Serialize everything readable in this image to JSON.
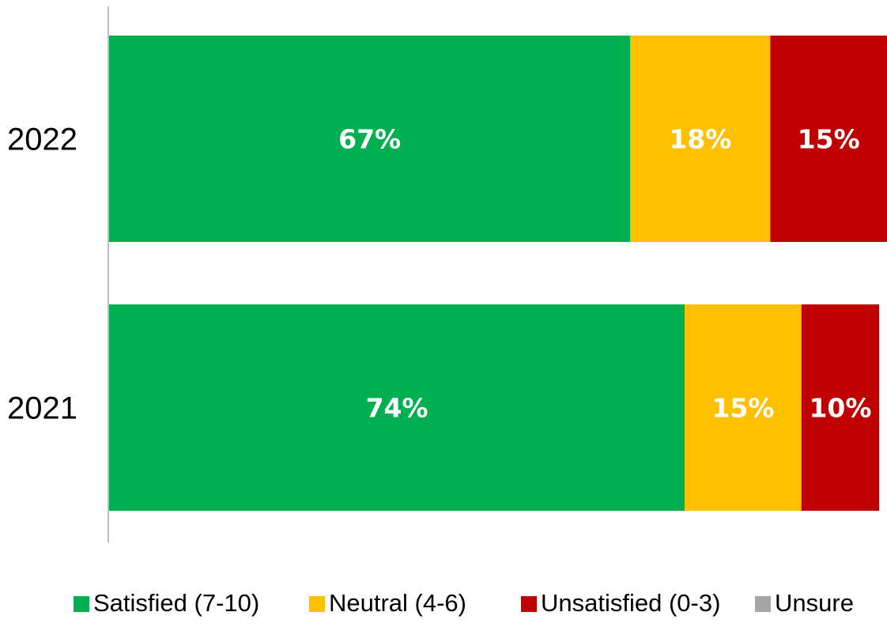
{
  "chart_data": {
    "type": "bar",
    "orientation": "horizontal",
    "stacked": true,
    "categories": [
      "2022",
      "2021"
    ],
    "series": [
      {
        "name": "Satisfied (7-10)",
        "color": "#00B050",
        "values": [
          67,
          74
        ],
        "labels": [
          "67%",
          "74%"
        ]
      },
      {
        "name": "Neutral (4-6)",
        "color": "#FFC000",
        "values": [
          18,
          15
        ],
        "labels": [
          "18%",
          "15%"
        ]
      },
      {
        "name": "Unsatisfied (0-3)",
        "color": "#C00000",
        "values": [
          15,
          10
        ],
        "labels": [
          "15%",
          "10%"
        ]
      },
      {
        "name": "Unsure",
        "color": "#A6A6A6",
        "values": [
          0,
          0
        ],
        "labels": [
          "",
          ""
        ]
      }
    ],
    "xlim": [
      0,
      100
    ],
    "grid": false,
    "legend_position": "bottom"
  }
}
